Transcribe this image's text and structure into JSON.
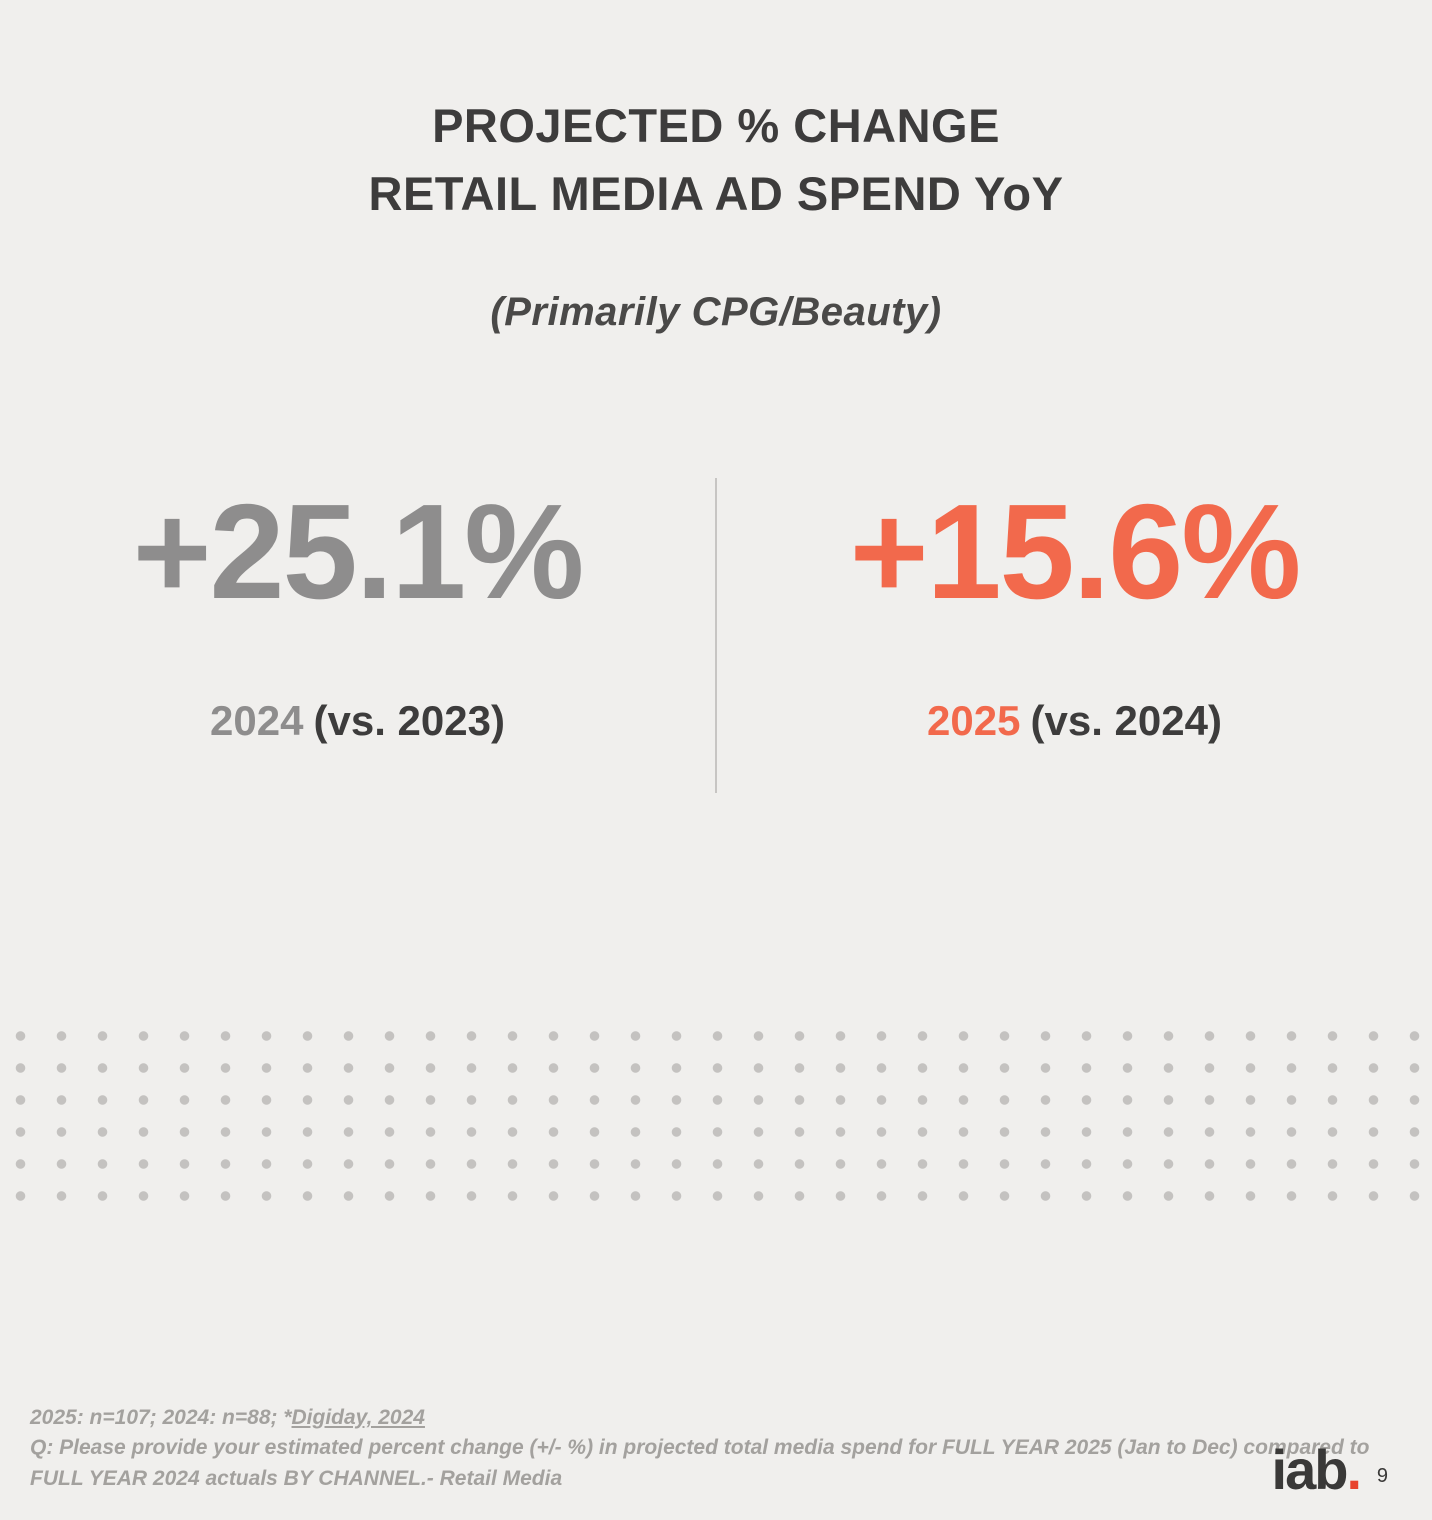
{
  "slide": {
    "title_line1": "PROJECTED % CHANGE",
    "title_line2": "RETAIL MEDIA AD SPEND YoY",
    "subtitle": "(Primarily CPG/Beauty)",
    "page_number": "9"
  },
  "stats": [
    {
      "value": "+25.1%",
      "year": "2024",
      "comparison": "(vs. 2023)",
      "color": "#8e8d8d"
    },
    {
      "value": "+15.6%",
      "year": "2025",
      "comparison": "(vs. 2024)",
      "color": "#f2694c"
    }
  ],
  "footnote": {
    "line1_prefix": "2025: n=107; 2024: n=88; *",
    "line1_source": "Digiday, 2024",
    "line2": "Q: Please provide your estimated percent change (+/- %) in projected total media spend for FULL YEAR 2025 (Jan to Dec) compared to",
    "line3": "FULL YEAR 2024 actuals BY CHANNEL.- Retail Media"
  },
  "logo": {
    "text": "iab",
    "dot": "."
  },
  "colors": {
    "background": "#f0efed",
    "title": "#3d3c3c",
    "stat_2024": "#8e8d8d",
    "stat_2025": "#f2694c",
    "divider": "#c7c5c3",
    "dots": "#c4c2c0",
    "footnote": "#a3a19e",
    "logo_dot": "#e8432d"
  },
  "chart_data": {
    "type": "table",
    "title": "PROJECTED % CHANGE RETAIL MEDIA AD SPEND YoY",
    "subtitle": "(Primarily CPG/Beauty)",
    "categories": [
      "2024 (vs. 2023)",
      "2025 (vs. 2024)"
    ],
    "values": [
      25.1,
      15.6
    ],
    "unit": "percent change YoY",
    "notes": "2025: n=107; 2024: n=88; *Digiday, 2024"
  }
}
